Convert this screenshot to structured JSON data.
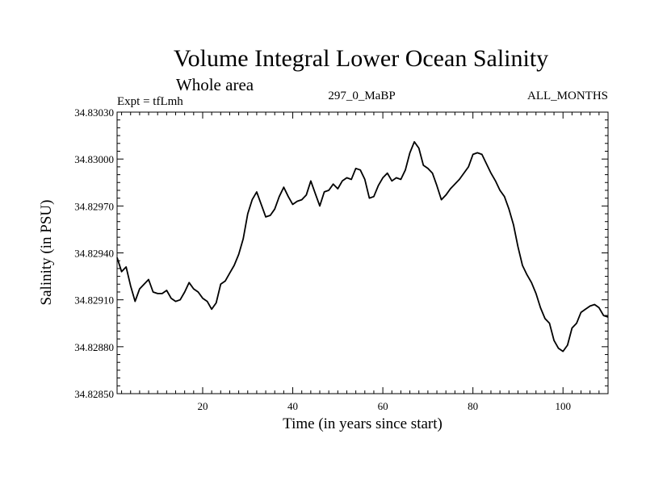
{
  "chart_data": {
    "type": "line",
    "title": "Volume Integral Lower Ocean Salinity",
    "subtitle": "Whole area",
    "header_left": "Expt = tfLmh",
    "header_center": "297_0_MaBP",
    "header_right": "ALL_MONTHS",
    "xlabel": "Time (in years since start)",
    "ylabel": "Salinity (in PSU)",
    "xlim": [
      1,
      110
    ],
    "ylim": [
      34.8285,
      34.8303
    ],
    "xticks": [
      20,
      40,
      60,
      80,
      100
    ],
    "yticks": [
      "34.82850",
      "34.82880",
      "34.82910",
      "34.82940",
      "34.82970",
      "34.83000",
      "34.83030"
    ],
    "grid": false,
    "series": [
      {
        "name": "salinity",
        "color": "#000000",
        "x": [
          1,
          2,
          3,
          4,
          5,
          6,
          7,
          8,
          9,
          10,
          11,
          12,
          13,
          14,
          15,
          16,
          17,
          18,
          19,
          20,
          21,
          22,
          23,
          24,
          25,
          26,
          27,
          28,
          29,
          30,
          31,
          32,
          33,
          34,
          35,
          36,
          37,
          38,
          39,
          40,
          41,
          42,
          43,
          44,
          45,
          46,
          47,
          48,
          49,
          50,
          51,
          52,
          53,
          54,
          55,
          56,
          57,
          58,
          59,
          60,
          61,
          62,
          63,
          64,
          65,
          66,
          67,
          68,
          69,
          70,
          71,
          72,
          73,
          74,
          75,
          76,
          77,
          78,
          79,
          80,
          81,
          82,
          83,
          84,
          85,
          86,
          87,
          88,
          89,
          90,
          91,
          92,
          93,
          94,
          95,
          96,
          97,
          98,
          99,
          100,
          101,
          102,
          103,
          104,
          105,
          106,
          107,
          108,
          109,
          110
        ],
        "y": [
          34.82937,
          34.82928,
          34.82931,
          34.82919,
          34.82909,
          34.82917,
          34.8292,
          34.82923,
          34.82915,
          34.82914,
          34.82914,
          34.82916,
          34.82911,
          34.82909,
          34.8291,
          34.82915,
          34.82921,
          34.82917,
          34.82915,
          34.82911,
          34.82909,
          34.82904,
          34.82908,
          34.8292,
          34.82922,
          34.82927,
          34.82932,
          34.82939,
          34.82949,
          34.82965,
          34.82974,
          34.82979,
          34.82971,
          34.82963,
          34.82964,
          34.82968,
          34.82976,
          34.82982,
          34.82976,
          34.82971,
          34.82973,
          34.82974,
          34.82977,
          34.82986,
          34.82978,
          34.8297,
          34.82979,
          34.8298,
          34.82984,
          34.82981,
          34.82986,
          34.82988,
          34.82987,
          34.82994,
          34.82993,
          34.82987,
          34.82975,
          34.82976,
          34.82983,
          34.82988,
          34.82991,
          34.82986,
          34.82988,
          34.82987,
          34.82993,
          34.83004,
          34.83011,
          34.83007,
          34.82996,
          34.82994,
          34.82991,
          34.82983,
          34.82974,
          34.82977,
          34.82981,
          34.82984,
          34.82987,
          34.82991,
          34.82995,
          34.83003,
          34.83004,
          34.83003,
          34.82997,
          34.82991,
          34.82986,
          34.8298,
          34.82976,
          34.82968,
          34.82958,
          34.82944,
          34.82932,
          34.82926,
          34.82921,
          34.82914,
          34.82905,
          34.82898,
          34.82895,
          34.82884,
          34.82879,
          34.82877,
          34.82881,
          34.82892,
          34.82895,
          34.82902,
          34.82904,
          34.82906,
          34.82907,
          34.82905,
          34.829,
          34.82899
        ]
      }
    ]
  }
}
